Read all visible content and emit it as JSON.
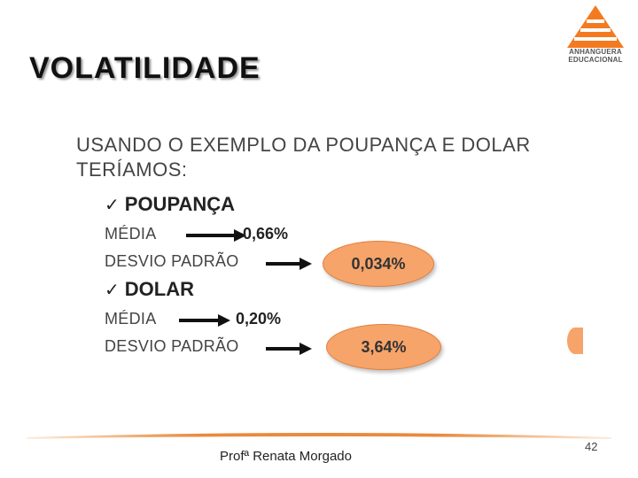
{
  "slide": {
    "title": "VOLATILIDADE",
    "logo": {
      "line1": "ANHANGUERA",
      "line2": "EDUCACIONAL",
      "color": "#f47a20"
    },
    "intro": [
      "USANDO O EXEMPLO DA POUPANÇA E DOLAR",
      "TERÍAMOS:"
    ],
    "sections": [
      {
        "heading": "POUPANÇA",
        "mean_label": "MÉDIA",
        "mean_value": "0,66%",
        "sd_label": "DESVIO PADRÃO",
        "sd_value": "0,034%"
      },
      {
        "heading": "DOLAR",
        "mean_label": "MÉDIA",
        "mean_value": "0,20%",
        "sd_label": "DESVIO PADRÃO",
        "sd_value": "3,64%"
      }
    ],
    "check_glyph": "✓",
    "accent_color": "#f6a46a"
  },
  "footer": {
    "author": "Profª Renata Morgado",
    "page_number": "42"
  }
}
